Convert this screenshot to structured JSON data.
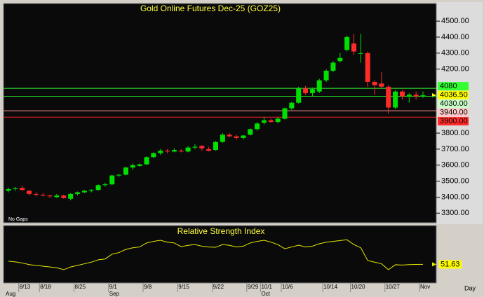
{
  "chart_data": [
    {
      "type": "candlestick",
      "title": "Gold Online Futures Dec-25  (GOZ25)",
      "note": "No Gaps",
      "categories": [
        null,
        null,
        "8/13",
        null,
        null,
        "8/18",
        null,
        null,
        null,
        null,
        "8/25",
        null,
        null,
        null,
        null,
        "9/1",
        null,
        null,
        null,
        null,
        "9/8",
        null,
        null,
        null,
        null,
        "9/15",
        null,
        null,
        null,
        null,
        "9/22",
        null,
        null,
        null,
        null,
        "9/29",
        null,
        "10/1",
        null,
        null,
        "10/6",
        null,
        null,
        null,
        null,
        null,
        "10/14",
        null,
        null,
        null,
        "10/20",
        null,
        null,
        null,
        null,
        "10/27",
        null,
        null,
        null,
        null,
        "Nov"
      ],
      "months": [
        "Aug",
        null,
        null,
        null,
        null,
        null,
        null,
        null,
        null,
        null,
        null,
        null,
        null,
        null,
        null,
        "Sep",
        null,
        null,
        null,
        null,
        null,
        null,
        null,
        null,
        null,
        null,
        null,
        null,
        null,
        null,
        null,
        null,
        null,
        null,
        null,
        null,
        null,
        "Oct",
        null,
        null,
        null,
        null,
        null,
        null,
        null,
        null,
        null,
        null,
        null,
        null,
        null,
        null,
        null,
        null,
        null,
        null,
        null,
        null,
        null,
        null,
        null
      ],
      "open": [
        3440,
        3450,
        3458,
        3440,
        3420,
        3415,
        3410,
        3400,
        3410,
        3390,
        3420,
        3430,
        3440,
        3445,
        3475,
        3480,
        3535,
        3540,
        3585,
        3595,
        3605,
        3650,
        3675,
        3690,
        3685,
        3690,
        3685,
        3710,
        3720,
        3700,
        3695,
        3745,
        3790,
        3780,
        3770,
        3790,
        3825,
        3865,
        3880,
        3870,
        3890,
        3955,
        3990,
        4080,
        4050,
        4060,
        4130,
        4190,
        4250,
        4320,
        4360,
        4300,
        4300,
        4120,
        4110,
        4090,
        3960,
        4060,
        4030,
        4040,
        4030
      ],
      "high": [
        3460,
        3465,
        3470,
        3445,
        3430,
        3425,
        3415,
        3420,
        3415,
        3425,
        3435,
        3445,
        3450,
        3480,
        3490,
        3540,
        3545,
        3590,
        3610,
        3610,
        3655,
        3680,
        3700,
        3700,
        3705,
        3700,
        3720,
        3730,
        3725,
        3715,
        3750,
        3800,
        3800,
        3790,
        3790,
        3830,
        3870,
        3900,
        3890,
        3900,
        3960,
        3995,
        4090,
        4095,
        4085,
        4140,
        4200,
        4250,
        4300,
        4410,
        4420,
        4420,
        4310,
        4130,
        4180,
        4100,
        4070,
        4070,
        4050,
        4060,
        4060
      ],
      "low": [
        3430,
        3440,
        3440,
        3410,
        3405,
        3405,
        3395,
        3395,
        3390,
        3380,
        3410,
        3425,
        3430,
        3440,
        3465,
        3475,
        3525,
        3535,
        3570,
        3590,
        3600,
        3645,
        3665,
        3675,
        3680,
        3680,
        3680,
        3700,
        3690,
        3685,
        3690,
        3740,
        3775,
        3760,
        3760,
        3785,
        3815,
        3855,
        3865,
        3860,
        3885,
        3945,
        3985,
        4040,
        4030,
        4050,
        4120,
        4180,
        4240,
        4310,
        4290,
        4240,
        4090,
        4040,
        4080,
        3920,
        3950,
        4010,
        3990,
        4010,
        4020
      ],
      "close": [
        3450,
        3455,
        3445,
        3420,
        3415,
        3410,
        3405,
        3410,
        3395,
        3420,
        3430,
        3440,
        3445,
        3475,
        3480,
        3535,
        3540,
        3585,
        3600,
        3605,
        3650,
        3675,
        3690,
        3685,
        3695,
        3685,
        3710,
        3715,
        3705,
        3690,
        3745,
        3790,
        3780,
        3770,
        3785,
        3825,
        3860,
        3880,
        3870,
        3890,
        3955,
        3990,
        4080,
        4050,
        4075,
        4130,
        4190,
        4240,
        4270,
        4400,
        4310,
        4300,
        4120,
        4100,
        4090,
        3960,
        4060,
        4030,
        4040,
        4030,
        4036.5
      ],
      "up_color": "#00e000",
      "down_color": "#ff2a2a",
      "ylim": [
        3240,
        4610
      ],
      "yticks": [
        {
          "value": 3300,
          "label": "3300.00"
        },
        {
          "value": 3400,
          "label": "3400.00"
        },
        {
          "value": 3500,
          "label": "3500.00"
        },
        {
          "value": 3600,
          "label": "3600.00"
        },
        {
          "value": 3700,
          "label": "3700.00"
        },
        {
          "value": 3800,
          "label": "3800.00"
        },
        {
          "value": 4200,
          "label": "4200.00"
        },
        {
          "value": 4300,
          "label": "4300.00"
        },
        {
          "value": 4400,
          "label": "4400.00"
        },
        {
          "value": 4500,
          "label": "4500.00"
        }
      ],
      "levels": [
        {
          "value": 4080,
          "label": "4080",
          "color": "#33ff33",
          "label_color": "#33ff33"
        },
        {
          "value": 4036.5,
          "label": "4036.50",
          "line": false,
          "color": "#ffff00",
          "label_color": "#ffff00"
        },
        {
          "value": 4030,
          "label": "4030.00",
          "color": "#22cc22",
          "label_color": "#c8ffc8"
        },
        {
          "value": 3940,
          "label": "3940.00",
          "color": "#ff9090",
          "label_color": "#ffc8c8"
        },
        {
          "value": 3900,
          "label": "3900.00",
          "color": "#ff2020",
          "label_color": "#ff2a2a"
        }
      ]
    },
    {
      "type": "line",
      "title": "Relative Strength Index",
      "x_label": "Day",
      "color": "#e8e800",
      "ylim": [
        40,
        75
      ],
      "values": [
        53.6,
        53.2,
        52.5,
        51.5,
        51,
        50.5,
        50,
        49.5,
        48.3,
        50,
        51,
        52,
        53,
        54.5,
        55,
        58,
        59,
        61,
        62,
        62.5,
        65,
        66,
        66.7,
        65.5,
        65,
        62.7,
        63.5,
        64,
        63,
        62.5,
        62.3,
        64,
        63.5,
        62.5,
        63,
        65,
        66,
        66.7,
        65.5,
        64,
        61.4,
        62.5,
        63.6,
        62.5,
        63,
        64.5,
        65.5,
        66,
        66.5,
        67,
        64,
        62,
        54,
        53,
        52,
        48.3,
        51.4,
        51.2,
        51.5,
        51.6,
        51.63
      ]
    }
  ]
}
